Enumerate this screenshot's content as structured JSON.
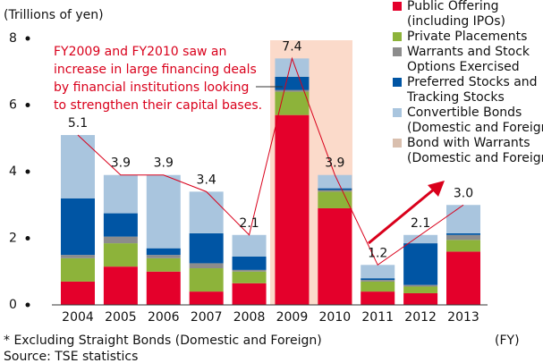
{
  "chart_data": {
    "type": "stacked_bar",
    "y_axis_label": "(Trillions of yen)",
    "x_axis_unit": "(FY)",
    "footnote": "* Excluding Straight Bonds (Domestic and Foreign)",
    "source": "Source: TSE statistics",
    "annotation": [
      "FY2009 and FY2010 saw an",
      "increase in large financing deals",
      "by financial institutions looking",
      "to strengthen their capital bases."
    ],
    "categories": [
      "2004",
      "2005",
      "2006",
      "2007",
      "2008",
      "2009",
      "2010",
      "2011",
      "2012",
      "2013"
    ],
    "series": [
      {
        "name": [
          "Public Offering",
          "(including IPOs)"
        ],
        "color": "#e4002b",
        "values": [
          0.7,
          1.15,
          1.0,
          0.4,
          0.65,
          5.7,
          2.9,
          0.4,
          0.35,
          1.6
        ]
      },
      {
        "name": [
          "Private Placements"
        ],
        "color": "#8db33a",
        "values": [
          0.7,
          0.7,
          0.4,
          0.7,
          0.35,
          0.7,
          0.5,
          0.3,
          0.2,
          0.35
        ]
      },
      {
        "name": [
          "Warrants and Stock",
          "Options Exercised"
        ],
        "color": "#8c8c8c",
        "values": [
          0.1,
          0.2,
          0.1,
          0.15,
          0.05,
          0.05,
          0.05,
          0.05,
          0.05,
          0.15
        ]
      },
      {
        "name": [
          "Preferred Stocks and",
          "Tracking Stocks"
        ],
        "color": "#0055a4",
        "values": [
          1.7,
          0.7,
          0.2,
          0.9,
          0.4,
          0.4,
          0.05,
          0.05,
          1.25,
          0.05
        ]
      },
      {
        "name": [
          "Convertible Bonds",
          "(Domestic and Foreign)"
        ],
        "color": "#a9c5de",
        "values": [
          1.9,
          1.15,
          2.2,
          1.25,
          0.65,
          0.55,
          0.4,
          0.4,
          0.25,
          0.85
        ]
      },
      {
        "name": [
          "Bond with Warrants",
          "(Domestic and Foreign)"
        ],
        "color": "#d9bfae",
        "values": [
          0,
          0,
          0,
          0,
          0,
          0,
          0,
          0,
          0,
          0
        ]
      }
    ],
    "totals": [
      5.1,
      3.9,
      3.9,
      3.4,
      2.1,
      7.4,
      3.9,
      1.2,
      2.1,
      3.0
    ],
    "totals_labels": [
      "5.1",
      "3.9",
      "3.9",
      "3.4",
      "2.1",
      "7.4",
      "3.9",
      "1.2",
      "2.1",
      "3.0"
    ],
    "ylim": [
      0,
      8
    ],
    "yticks": [
      0,
      2,
      4,
      6,
      8
    ]
  }
}
